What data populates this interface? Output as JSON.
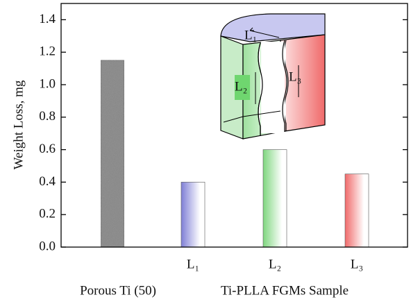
{
  "chart_data": {
    "type": "bar",
    "y_label": "Weight Loss, mg",
    "categories": [
      null,
      "L₁",
      "L₂",
      "L₃"
    ],
    "values": [
      1.15,
      0.4,
      0.6,
      0.45
    ],
    "colors": [
      "#8a8a8a",
      "#7f7fd6",
      "#7fd67f",
      "#f06a6a"
    ],
    "x_labels": [
      "Porous Ti (50)",
      "Ti-PLLA FGMs Sample"
    ],
    "ylim": [
      0,
      1.5
    ],
    "yticks": [
      {
        "value": 0,
        "label": "0.0"
      },
      0.2,
      0.4,
      0.6,
      0.8,
      {
        "value": 1,
        "label": "1.0"
      },
      1.2,
      1.4
    ],
    "inset": {
      "labels": [
        "L₁",
        "L₂",
        "L₃"
      ]
    }
  }
}
